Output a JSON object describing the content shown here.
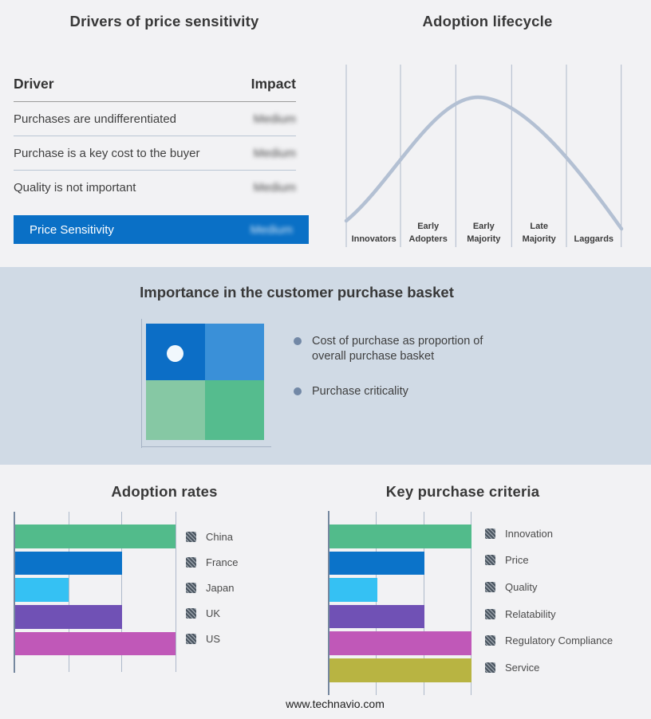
{
  "colors": {
    "page_bg": "#f2f2f4",
    "band_bg": "#d0dae5",
    "highlight_blue": "#0a70c6",
    "bar_green": "#52bb8b",
    "bar_blue": "#0b73c9",
    "bar_cyan": "#35c1f3",
    "bar_purple": "#7051b5",
    "bar_magenta": "#c058b8",
    "bar_olive": "#b8b442",
    "quadrant_top_left": "#0c6ec6",
    "quadrant_top_right": "#3a90d8",
    "quadrant_bottom_left": "#86c8a4",
    "quadrant_bottom_right": "#55bc8e",
    "curve": "#b3c0d3",
    "gridline": "#aeb9ca",
    "axis": "#76889f",
    "bullet_dot": "#7288a6"
  },
  "drivers_panel": {
    "title": "Drivers of price sensitivity",
    "col_driver": "Driver",
    "col_impact": "Impact",
    "rows": [
      {
        "driver": "Purchases are undifferentiated",
        "impact": "Medium"
      },
      {
        "driver": "Purchase is a key cost to the buyer",
        "impact": "Medium"
      },
      {
        "driver": "Quality is not important",
        "impact": "Medium"
      }
    ],
    "highlight_row": {
      "driver": "Price Sensitivity",
      "impact": "Medium"
    }
  },
  "lifecycle_panel": {
    "title": "Adoption lifecycle",
    "stage_labels": [
      "Innovators",
      "Early\nAdopters",
      "Early\nMajority",
      "Late\nMajority",
      "Laggards"
    ]
  },
  "basket_panel": {
    "title": "Importance in the customer purchase basket",
    "bullets": [
      "Cost of purchase as proportion of\noverall purchase basket",
      "Purchase criticality"
    ]
  },
  "footer": {
    "url": "www.technavio.com"
  },
  "chart_data": [
    {
      "type": "line",
      "name": "adoption-lifecycle",
      "title": "Adoption lifecycle",
      "x_stages": [
        "Innovators",
        "Early Adopters",
        "Early Majority",
        "Late Majority",
        "Laggards"
      ],
      "shape": "bell curve rising from Innovators, peaking at Early Majority, falling through Laggards",
      "grid": "vertical stage-boundary lines, no y-axis values shown",
      "legend_position": "none"
    },
    {
      "type": "bar",
      "name": "adoption-rates",
      "title": "Adoption rates",
      "orientation": "horizontal",
      "categories": [
        "China",
        "France",
        "Japan",
        "UK",
        "US"
      ],
      "values": [
        3,
        2,
        1,
        2,
        3
      ],
      "xlim": [
        0,
        3
      ],
      "xlabel": "",
      "ylabel": "",
      "grid": "vertical gridlines at units 1,2,3; no tick labels shown",
      "legend_position": "right"
    },
    {
      "type": "bar",
      "name": "key-purchase-criteria",
      "title": "Key purchase criteria",
      "orientation": "horizontal",
      "categories": [
        "Innovation",
        "Price",
        "Quality",
        "Relatability",
        "Regulatory Compliance",
        "Service"
      ],
      "values": [
        3,
        2,
        1,
        2,
        3,
        3
      ],
      "xlim": [
        0,
        3
      ],
      "xlabel": "",
      "ylabel": "",
      "grid": "vertical gridlines at units 1,2,3; no tick labels shown",
      "legend_position": "right"
    },
    {
      "type": "table",
      "name": "drivers-of-price-sensitivity",
      "title": "Drivers of price sensitivity",
      "columns": [
        "Driver",
        "Impact"
      ],
      "rows": [
        [
          "Purchases are undifferentiated",
          "Medium"
        ],
        [
          "Purchase is a key cost to the buyer",
          "Medium"
        ],
        [
          "Quality is not important",
          "Medium"
        ],
        [
          "Price Sensitivity",
          "Medium"
        ]
      ],
      "note": "Impact values are blurred in the image; Price Sensitivity row is highlighted blue"
    }
  ]
}
